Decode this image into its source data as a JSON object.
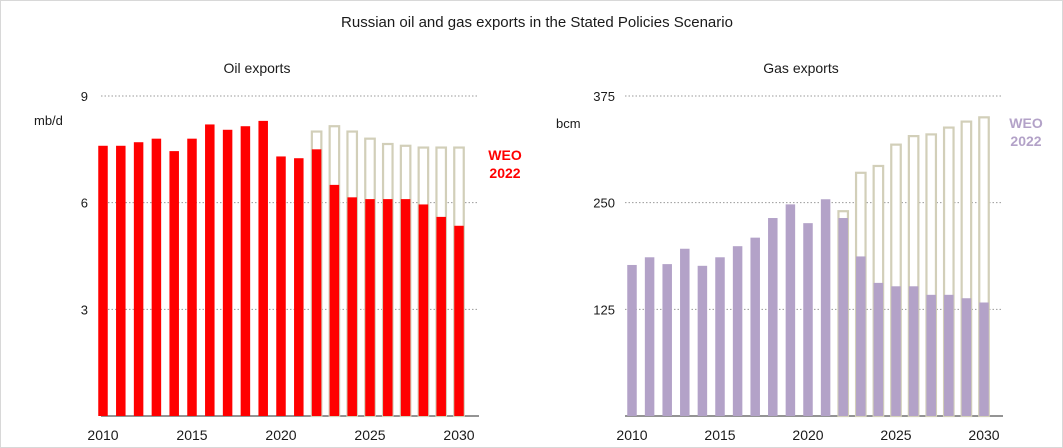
{
  "title": "Russian oil and gas exports in the Stated Policies Scenario",
  "colors": {
    "oil": "#ff0000",
    "gas": "#b3a2c8",
    "weo2022_fill": "#ffffff",
    "weo2022_stroke": "#d2cfb9",
    "grid": "#9a9a9a",
    "axis": "#555555"
  },
  "chart_data": [
    {
      "type": "bar",
      "title": "Oil exports",
      "ylabel": "mb/d",
      "ylim": [
        0,
        9
      ],
      "yticks": [
        3,
        6,
        9
      ],
      "xticks": [
        "2010",
        "2015",
        "2020",
        "2025",
        "2030"
      ],
      "grid": true,
      "categories": [
        2010,
        2011,
        2012,
        2013,
        2014,
        2015,
        2016,
        2017,
        2018,
        2019,
        2020,
        2021,
        2022,
        2023,
        2024,
        2025,
        2026,
        2027,
        2028,
        2029,
        2030
      ],
      "series": [
        {
          "name": "",
          "values": [
            7.6,
            7.6,
            7.7,
            7.8,
            7.45,
            7.8,
            8.2,
            8.05,
            8.15,
            8.3,
            7.3,
            7.25,
            7.5,
            6.5,
            6.15,
            6.1,
            6.1,
            6.1,
            5.95,
            5.6,
            5.35
          ]
        },
        {
          "name": "WEO 2022",
          "values": [
            null,
            null,
            null,
            null,
            null,
            null,
            null,
            null,
            null,
            null,
            null,
            null,
            8.0,
            8.15,
            8.0,
            7.8,
            7.65,
            7.6,
            7.55,
            7.55,
            7.55
          ]
        }
      ],
      "annotation": [
        "WEO",
        "2022"
      ]
    },
    {
      "type": "bar",
      "title": "Gas exports",
      "ylabel": "bcm",
      "ylim": [
        0,
        375
      ],
      "yticks": [
        125,
        250,
        375
      ],
      "xticks": [
        "2010",
        "2015",
        "2020",
        "2025",
        "2030"
      ],
      "grid": true,
      "categories": [
        2010,
        2011,
        2012,
        2013,
        2014,
        2015,
        2016,
        2017,
        2018,
        2019,
        2020,
        2021,
        2022,
        2023,
        2024,
        2025,
        2026,
        2027,
        2028,
        2029,
        2030
      ],
      "series": [
        {
          "name": "",
          "values": [
            177,
            186,
            178,
            196,
            176,
            186,
            199,
            209,
            232,
            248,
            226,
            254,
            232,
            187,
            156,
            152,
            152,
            142,
            142,
            138,
            133
          ]
        },
        {
          "name": "WEO 2022",
          "values": [
            null,
            null,
            null,
            null,
            null,
            null,
            null,
            null,
            null,
            null,
            null,
            null,
            240,
            285,
            293,
            318,
            328,
            330,
            338,
            345,
            350
          ]
        }
      ],
      "annotation": [
        "WEO",
        "2022"
      ]
    }
  ]
}
